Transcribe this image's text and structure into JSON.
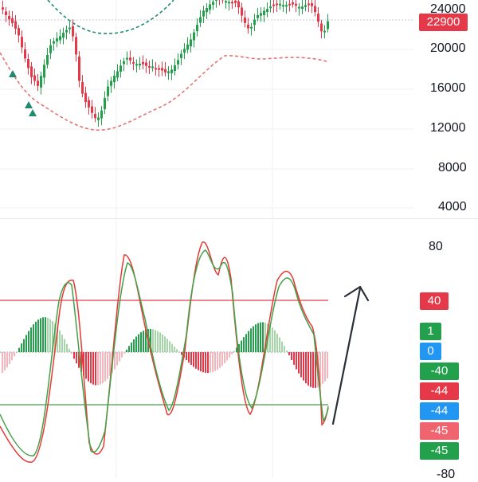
{
  "colors": {
    "up": "#22a04b",
    "down": "#e5394a",
    "up_light": "#a5d6a7",
    "down_light": "#f4b6bd",
    "band_upper": "#1f8a6e",
    "band_lower": "#e57373",
    "oscillator_fast": "#43a047",
    "oscillator_slow": "#e53935",
    "price_badge": "#e5394a",
    "blue_badge": "#2196f3",
    "arrow": "#2a2e39"
  },
  "price_pane": {
    "axis_labels": [
      "24000",
      "20000",
      "16000",
      "12000",
      "8000",
      "4000"
    ],
    "last_price_label": "22900",
    "icons": [
      "triangle-up-icon",
      "triangle-up-icon",
      "triangle-up-icon"
    ]
  },
  "indicator_pane": {
    "axis_labels": [
      "80",
      "-80"
    ],
    "level_badges": [
      {
        "label": "40",
        "color": "#e5394a"
      },
      {
        "label": "1",
        "color": "#22a04b"
      },
      {
        "label": "0",
        "color": "#2196f3"
      },
      {
        "label": "-40",
        "color": "#22a04b"
      },
      {
        "label": "-44",
        "color": "#e5394a"
      },
      {
        "label": "-44",
        "color": "#2196f3"
      },
      {
        "label": "-45",
        "color": "#f06470"
      },
      {
        "label": "-45",
        "color": "#22a04b"
      }
    ],
    "annotation_icon": "arrow-up-icon"
  }
}
